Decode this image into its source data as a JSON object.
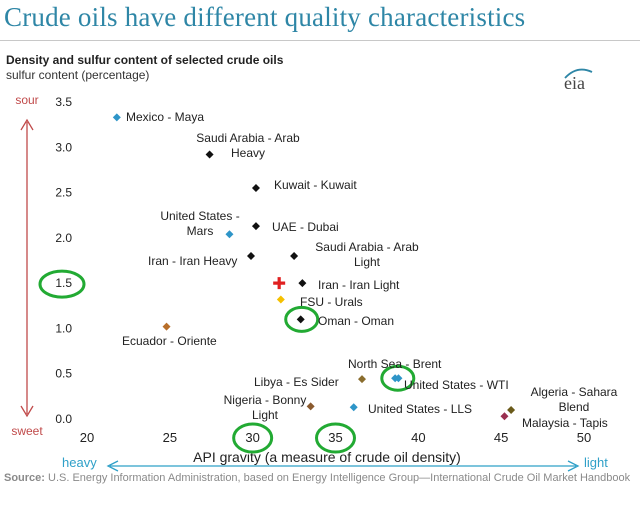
{
  "header": {
    "title": "Crude oils have different quality characteristics",
    "logo_text": "eia"
  },
  "chart_data": {
    "type": "scatter",
    "title": "Density and sulfur content of selected crude oils",
    "ylabel": "sulfur content (percentage)",
    "xlabel": "API gravity (a measure of crude oil density)",
    "xlim": [
      20,
      50
    ],
    "ylim": [
      0,
      3.5
    ],
    "xticks": [
      20,
      25,
      30,
      35,
      40,
      45,
      50
    ],
    "yticks": [
      0.0,
      0.5,
      1.0,
      1.5,
      2.0,
      2.5,
      3.0,
      3.5
    ],
    "ytick_labels": [
      "0.0",
      "0.5",
      "1.0",
      "1.5",
      "2.0",
      "2.5",
      "3.0",
      "3.5"
    ],
    "y_axis_annotations": {
      "top": "sour",
      "bottom": "sweet"
    },
    "x_axis_annotations": {
      "left": "heavy",
      "right": "light"
    },
    "grid": false,
    "points": [
      {
        "label": "Mexico - Maya",
        "x": 21.8,
        "y": 3.33,
        "color": "#2e95c8"
      },
      {
        "label": "Saudi Arabia - Arab Heavy",
        "x": 27.4,
        "y": 2.92,
        "color": "#111111"
      },
      {
        "label": "Kuwait - Kuwait",
        "x": 30.2,
        "y": 2.55,
        "color": "#111111"
      },
      {
        "label": "United States - Mars",
        "x": 28.6,
        "y": 2.04,
        "color": "#2e95c8"
      },
      {
        "label": "UAE - Dubai",
        "x": 30.2,
        "y": 2.13,
        "color": "#111111"
      },
      {
        "label": "Iran - Iran Heavy",
        "x": 29.9,
        "y": 1.8,
        "color": "#111111"
      },
      {
        "label": "Saudi Arabia - Arab Light",
        "x": 32.5,
        "y": 1.8,
        "color": "#111111"
      },
      {
        "label": "Iran - Iran Light",
        "x": 33.0,
        "y": 1.5,
        "color": "#111111"
      },
      {
        "label": "FSU - Urals",
        "x": 31.7,
        "y": 1.32,
        "color": "#f5c000"
      },
      {
        "label": "Oman - Oman",
        "x": 32.9,
        "y": 1.1,
        "color": "#111111"
      },
      {
        "label": "Ecuador - Oriente",
        "x": 24.8,
        "y": 1.02,
        "color": "#b86f2a"
      },
      {
        "label": "North Sea - Brent",
        "x": 38.6,
        "y": 0.45,
        "color": "#2e95c8"
      },
      {
        "label": "Libya - Es Sider",
        "x": 36.6,
        "y": 0.44,
        "color": "#8a6d2e"
      },
      {
        "label": "United States - WTI",
        "x": 38.8,
        "y": 0.45,
        "color": "#2e95c8"
      },
      {
        "label": "Nigeria - Bonny Light",
        "x": 33.5,
        "y": 0.14,
        "color": "#8a5a2e"
      },
      {
        "label": "United States - LLS",
        "x": 36.1,
        "y": 0.13,
        "color": "#2e95c8"
      },
      {
        "label": "Algeria - Sahara Blend",
        "x": 45.6,
        "y": 0.1,
        "color": "#6a5a1a"
      },
      {
        "label": "Malaysia - Tapis",
        "x": 45.2,
        "y": 0.03,
        "color": "#9a3050"
      }
    ],
    "highlights": [
      {
        "type": "cross",
        "x": 31.6,
        "y": 1.5,
        "color": "#e02020"
      },
      {
        "type": "ellipse",
        "target": "ytick",
        "value": 1.5,
        "color": "#22aa33"
      },
      {
        "type": "ellipse",
        "target": "xtick",
        "value": 30,
        "color": "#22aa33"
      },
      {
        "type": "ellipse",
        "target": "xtick",
        "value": 35,
        "color": "#22aa33"
      },
      {
        "type": "ellipse",
        "target": "point",
        "x": 32.9,
        "y": 1.1,
        "color": "#22aa33"
      },
      {
        "type": "ellipse",
        "target": "point",
        "x": 38.7,
        "y": 0.45,
        "color": "#22aa33"
      }
    ]
  },
  "footer": {
    "source_label": "Source:",
    "source_text": " U.S. Energy Information Administration, based on Energy Intelligence Group—International Crude Oil Market Handbook"
  }
}
